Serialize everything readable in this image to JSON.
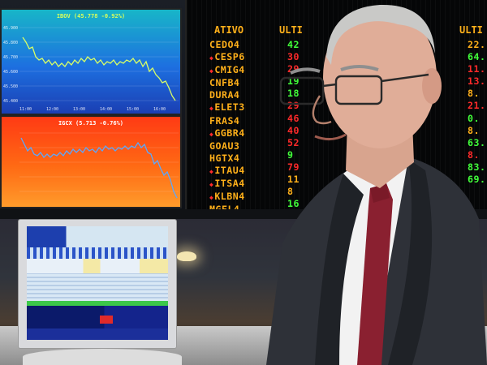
{
  "panels": {
    "top": {
      "title": "IBOV (45.778 -0.92%)",
      "y_ticks": [
        "45.900",
        "45.800",
        "45.700",
        "45.600",
        "45.500",
        "45.400"
      ],
      "x_ticks": [
        "11:00",
        "12:00",
        "13:00",
        "14:00",
        "15:00",
        "16:00"
      ]
    },
    "bottom": {
      "title": "IGCX (5.713 -0.76%)"
    }
  },
  "board": {
    "header_ticker": "ATIVO",
    "header_last": "ULTI",
    "header_right": "ULTI",
    "tickers": [
      "CEDO4",
      "CESP6",
      "CMIG4",
      "CNFB4",
      "DURA4",
      "ELET3",
      "FRAS4",
      "GGBR4",
      "GOAU3",
      "HGTX4",
      "ITAU4",
      "ITSA4",
      "KLBN4",
      "MGEL4"
    ],
    "flagged": [
      1,
      2,
      5,
      7,
      10,
      11,
      12
    ],
    "values": [
      "42",
      "30",
      "29",
      "19",
      "18",
      "29",
      "46",
      "40",
      "52",
      "9",
      "79",
      "11",
      "8",
      "16"
    ],
    "value_states": [
      "up",
      "down",
      "down",
      "up",
      "up",
      "down",
      "down",
      "down",
      "down",
      "up",
      "down",
      "flat",
      "flat",
      "up"
    ],
    "right_values": [
      "22.",
      "64.",
      "11.",
      "13.",
      "8.",
      "21.",
      "0.",
      "8.",
      "63.",
      "8.",
      "83.",
      "69.",
      "",
      ""
    ],
    "right_states": [
      "flat",
      "up",
      "down",
      "down",
      "flat",
      "down",
      "up",
      "flat",
      "up",
      "down",
      "up",
      "up",
      "flat",
      "flat"
    ]
  },
  "colors": {
    "ticker_amber": "#ffb01a",
    "up_green": "#41ff3a",
    "down_red": "#ff2a2a",
    "panel_blue": "#1d6fe0",
    "panel_orange": "#ff6a14"
  }
}
